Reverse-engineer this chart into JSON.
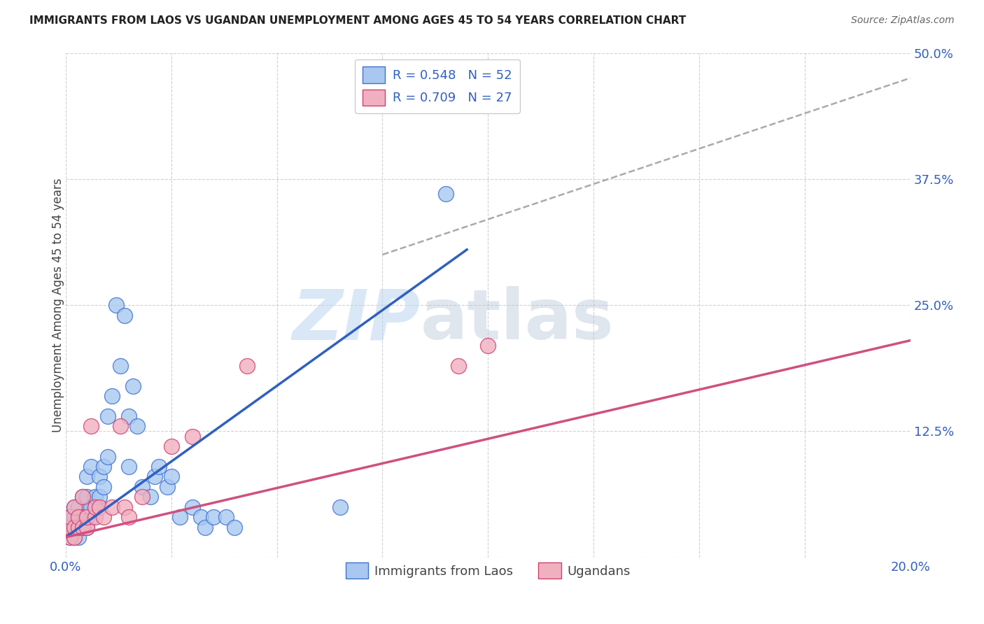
{
  "title": "IMMIGRANTS FROM LAOS VS UGANDAN UNEMPLOYMENT AMONG AGES 45 TO 54 YEARS CORRELATION CHART",
  "source": "Source: ZipAtlas.com",
  "ylabel": "Unemployment Among Ages 45 to 54 years",
  "xlim": [
    0.0,
    0.2
  ],
  "ylim": [
    0.0,
    0.5
  ],
  "xtick_positions": [
    0.0,
    0.025,
    0.05,
    0.075,
    0.1,
    0.125,
    0.15,
    0.175,
    0.2
  ],
  "xticklabels": [
    "0.0%",
    "",
    "",
    "",
    "",
    "",
    "",
    "",
    "20.0%"
  ],
  "ytick_positions": [
    0.0,
    0.125,
    0.25,
    0.375,
    0.5
  ],
  "ytick_labels": [
    "",
    "12.5%",
    "25.0%",
    "37.5%",
    "50.0%"
  ],
  "legend_r1": "R = 0.548",
  "legend_n1": "N = 52",
  "legend_r2": "R = 0.709",
  "legend_n2": "N = 27",
  "color_blue_fill": "#a8c8f0",
  "color_blue_edge": "#4070d0",
  "color_pink_fill": "#f0b0c0",
  "color_pink_edge": "#d04070",
  "color_blue_line": "#3060c0",
  "color_pink_line": "#d05080",
  "color_dashed": "#aaaaaa",
  "blue_scatter_x": [
    0.001,
    0.001,
    0.001,
    0.002,
    0.002,
    0.002,
    0.002,
    0.003,
    0.003,
    0.003,
    0.003,
    0.004,
    0.004,
    0.004,
    0.005,
    0.005,
    0.005,
    0.005,
    0.006,
    0.006,
    0.006,
    0.007,
    0.007,
    0.008,
    0.008,
    0.009,
    0.009,
    0.01,
    0.01,
    0.011,
    0.012,
    0.013,
    0.014,
    0.015,
    0.015,
    0.016,
    0.017,
    0.018,
    0.02,
    0.021,
    0.022,
    0.024,
    0.025,
    0.027,
    0.03,
    0.032,
    0.033,
    0.035,
    0.038,
    0.04,
    0.065,
    0.09
  ],
  "blue_scatter_y": [
    0.02,
    0.03,
    0.04,
    0.02,
    0.03,
    0.04,
    0.05,
    0.02,
    0.03,
    0.04,
    0.05,
    0.03,
    0.04,
    0.06,
    0.03,
    0.04,
    0.06,
    0.08,
    0.04,
    0.05,
    0.09,
    0.05,
    0.06,
    0.06,
    0.08,
    0.07,
    0.09,
    0.1,
    0.14,
    0.16,
    0.25,
    0.19,
    0.24,
    0.14,
    0.09,
    0.17,
    0.13,
    0.07,
    0.06,
    0.08,
    0.09,
    0.07,
    0.08,
    0.04,
    0.05,
    0.04,
    0.03,
    0.04,
    0.04,
    0.03,
    0.05,
    0.36
  ],
  "pink_scatter_x": [
    0.001,
    0.001,
    0.001,
    0.002,
    0.002,
    0.002,
    0.003,
    0.003,
    0.004,
    0.004,
    0.005,
    0.005,
    0.006,
    0.007,
    0.007,
    0.008,
    0.009,
    0.011,
    0.013,
    0.014,
    0.015,
    0.018,
    0.025,
    0.03,
    0.043,
    0.093,
    0.1
  ],
  "pink_scatter_y": [
    0.02,
    0.03,
    0.04,
    0.02,
    0.03,
    0.05,
    0.03,
    0.04,
    0.03,
    0.06,
    0.03,
    0.04,
    0.13,
    0.04,
    0.05,
    0.05,
    0.04,
    0.05,
    0.13,
    0.05,
    0.04,
    0.06,
    0.11,
    0.12,
    0.19,
    0.19,
    0.21
  ],
  "blue_line_x": [
    0.0,
    0.095
  ],
  "blue_line_y": [
    0.02,
    0.305
  ],
  "pink_line_x": [
    0.0,
    0.2
  ],
  "pink_line_y": [
    0.02,
    0.215
  ],
  "dashed_line_x": [
    0.075,
    0.2
  ],
  "dashed_line_y": [
    0.3,
    0.475
  ],
  "watermark_zip": "ZIP",
  "watermark_atlas": "atlas"
}
